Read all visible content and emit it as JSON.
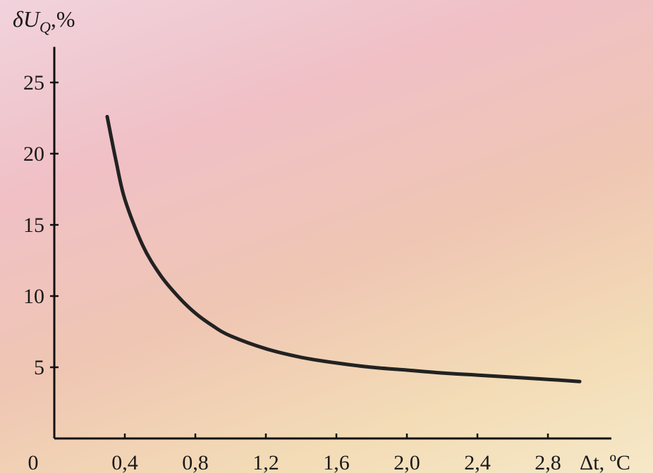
{
  "chart_data": {
    "type": "line",
    "ylabel": "δU_Q,%",
    "xlabel": "Δt, ºC",
    "x_ticks": [
      "0",
      "0,4",
      "0,8",
      "1,2",
      "1,6",
      "2,0",
      "2,4",
      "2,8"
    ],
    "x_tick_values": [
      0,
      0.4,
      0.8,
      1.2,
      1.6,
      2.0,
      2.4,
      2.8
    ],
    "y_ticks": [
      "5",
      "10",
      "15",
      "20",
      "25"
    ],
    "y_tick_values": [
      5,
      10,
      15,
      20,
      25
    ],
    "xlim": [
      0,
      3.2
    ],
    "ylim": [
      0,
      27.5
    ],
    "grid": false,
    "series": [
      {
        "x": [
          0.3,
          0.35,
          0.4,
          0.5,
          0.6,
          0.7,
          0.8,
          0.9,
          1.0,
          1.2,
          1.4,
          1.6,
          1.8,
          2.0,
          2.2,
          2.4,
          2.6,
          2.8,
          2.98
        ],
        "y": [
          22.6,
          19.5,
          16.8,
          13.6,
          11.5,
          10.0,
          8.8,
          7.9,
          7.2,
          6.3,
          5.7,
          5.3,
          5.0,
          4.8,
          4.6,
          4.45,
          4.3,
          4.15,
          4.0
        ]
      }
    ],
    "colors": {
      "line": "#222222",
      "axis": "#111111",
      "text": "#1a1a1a"
    }
  }
}
